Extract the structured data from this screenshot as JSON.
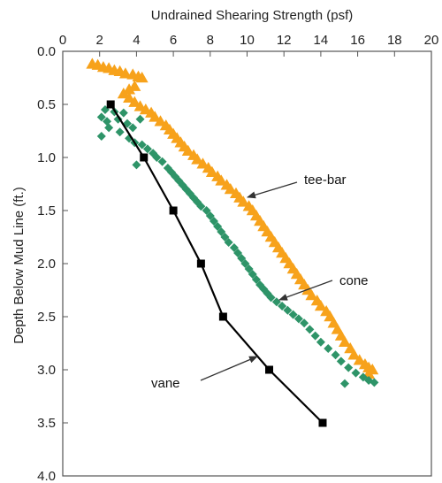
{
  "chart_data": {
    "type": "scatter",
    "title": "",
    "xlabel": "Undrained Shearing Strength (psf)",
    "ylabel": "Depth Below Mud Line (ft.)",
    "x_axis_position": "top",
    "y_axis_inverted": true,
    "xlim": [
      0,
      20
    ],
    "ylim": [
      0.0,
      4.0
    ],
    "x_ticks": [
      "0",
      "2",
      "4",
      "6",
      "8",
      "10",
      "12",
      "14",
      "16",
      "18",
      "20"
    ],
    "y_ticks": [
      "0.0",
      "0.5",
      "1.0",
      "1.5",
      "2.0",
      "2.5",
      "3.0",
      "3.5",
      "4.0"
    ],
    "grid": false,
    "series": [
      {
        "name": "tee-bar",
        "marker": "triangle",
        "color": "#F7A21B",
        "connected": false,
        "points": [
          [
            1.6,
            0.12
          ],
          [
            1.9,
            0.13
          ],
          [
            2.2,
            0.15
          ],
          [
            2.5,
            0.16
          ],
          [
            2.8,
            0.18
          ],
          [
            3.1,
            0.19
          ],
          [
            3.4,
            0.21
          ],
          [
            3.8,
            0.22
          ],
          [
            4.1,
            0.24
          ],
          [
            4.3,
            0.25
          ],
          [
            3.9,
            0.33
          ],
          [
            3.6,
            0.36
          ],
          [
            3.3,
            0.4
          ],
          [
            3.6,
            0.44
          ],
          [
            3.9,
            0.48
          ],
          [
            4.2,
            0.52
          ],
          [
            4.5,
            0.55
          ],
          [
            4.8,
            0.58
          ],
          [
            5.0,
            0.62
          ],
          [
            5.3,
            0.66
          ],
          [
            5.6,
            0.7
          ],
          [
            5.8,
            0.74
          ],
          [
            6.0,
            0.78
          ],
          [
            6.2,
            0.82
          ],
          [
            6.4,
            0.86
          ],
          [
            6.6,
            0.9
          ],
          [
            6.8,
            0.94
          ],
          [
            7.1,
            0.98
          ],
          [
            7.3,
            1.02
          ],
          [
            7.6,
            1.06
          ],
          [
            7.9,
            1.1
          ],
          [
            8.1,
            1.14
          ],
          [
            8.4,
            1.18
          ],
          [
            8.6,
            1.22
          ],
          [
            8.9,
            1.26
          ],
          [
            9.1,
            1.3
          ],
          [
            9.4,
            1.34
          ],
          [
            9.6,
            1.38
          ],
          [
            9.8,
            1.42
          ],
          [
            10.1,
            1.46
          ],
          [
            10.3,
            1.5
          ],
          [
            10.5,
            1.55
          ],
          [
            10.7,
            1.6
          ],
          [
            10.9,
            1.65
          ],
          [
            11.1,
            1.7
          ],
          [
            11.3,
            1.75
          ],
          [
            11.5,
            1.8
          ],
          [
            11.7,
            1.85
          ],
          [
            11.9,
            1.9
          ],
          [
            12.1,
            1.95
          ],
          [
            12.3,
            2.0
          ],
          [
            12.5,
            2.05
          ],
          [
            12.7,
            2.1
          ],
          [
            12.9,
            2.15
          ],
          [
            13.1,
            2.2
          ],
          [
            13.3,
            2.25
          ],
          [
            13.5,
            2.3
          ],
          [
            13.8,
            2.35
          ],
          [
            14.0,
            2.4
          ],
          [
            14.3,
            2.45
          ],
          [
            14.5,
            2.5
          ],
          [
            14.7,
            2.56
          ],
          [
            14.9,
            2.62
          ],
          [
            15.1,
            2.68
          ],
          [
            15.3,
            2.74
          ],
          [
            15.6,
            2.8
          ],
          [
            15.8,
            2.86
          ],
          [
            16.1,
            2.91
          ],
          [
            16.4,
            2.95
          ],
          [
            16.6,
            2.98
          ],
          [
            16.8,
            3.0
          ],
          [
            16.6,
            3.04
          ]
        ]
      },
      {
        "name": "cone",
        "marker": "diamond",
        "color": "#2E9468",
        "connected": false,
        "points": [
          [
            2.3,
            0.55
          ],
          [
            2.8,
            0.57
          ],
          [
            3.3,
            0.58
          ],
          [
            2.1,
            0.62
          ],
          [
            2.4,
            0.66
          ],
          [
            3.0,
            0.64
          ],
          [
            3.5,
            0.68
          ],
          [
            3.8,
            0.72
          ],
          [
            2.5,
            0.72
          ],
          [
            4.2,
            0.64
          ],
          [
            3.6,
            0.82
          ],
          [
            3.9,
            0.86
          ],
          [
            4.3,
            0.88
          ],
          [
            4.6,
            0.92
          ],
          [
            4.9,
            0.96
          ],
          [
            5.1,
            1.0
          ],
          [
            5.4,
            1.04
          ],
          [
            2.1,
            0.8
          ],
          [
            4.0,
            1.07
          ],
          [
            3.1,
            0.76
          ],
          [
            5.7,
            1.1
          ],
          [
            5.9,
            1.14
          ],
          [
            6.1,
            1.18
          ],
          [
            6.3,
            1.22
          ],
          [
            6.5,
            1.26
          ],
          [
            6.7,
            1.3
          ],
          [
            6.9,
            1.34
          ],
          [
            7.1,
            1.38
          ],
          [
            7.3,
            1.42
          ],
          [
            7.5,
            1.46
          ],
          [
            7.8,
            1.5
          ],
          [
            8.0,
            1.55
          ],
          [
            8.2,
            1.6
          ],
          [
            8.4,
            1.65
          ],
          [
            8.6,
            1.7
          ],
          [
            8.8,
            1.75
          ],
          [
            9.0,
            1.8
          ],
          [
            9.3,
            1.85
          ],
          [
            9.5,
            1.9
          ],
          [
            9.7,
            1.95
          ],
          [
            9.9,
            2.0
          ],
          [
            10.1,
            2.05
          ],
          [
            10.3,
            2.1
          ],
          [
            10.5,
            2.15
          ],
          [
            10.7,
            2.2
          ],
          [
            10.9,
            2.24
          ],
          [
            11.1,
            2.28
          ],
          [
            11.3,
            2.32
          ],
          [
            11.6,
            2.36
          ],
          [
            11.9,
            2.4
          ],
          [
            12.2,
            2.44
          ],
          [
            12.5,
            2.48
          ],
          [
            12.8,
            2.52
          ],
          [
            13.1,
            2.56
          ],
          [
            13.4,
            2.62
          ],
          [
            13.7,
            2.68
          ],
          [
            14.0,
            2.74
          ],
          [
            14.4,
            2.8
          ],
          [
            14.8,
            2.86
          ],
          [
            15.1,
            2.92
          ],
          [
            15.5,
            2.98
          ],
          [
            15.9,
            3.03
          ],
          [
            16.3,
            3.07
          ],
          [
            16.6,
            3.1
          ],
          [
            16.9,
            3.12
          ],
          [
            15.3,
            3.13
          ]
        ]
      },
      {
        "name": "vane",
        "marker": "square",
        "color": "#000000",
        "connected": true,
        "points": [
          [
            2.6,
            0.5
          ],
          [
            4.4,
            1.0
          ],
          [
            6.0,
            1.5
          ],
          [
            7.5,
            2.0
          ],
          [
            8.7,
            2.5
          ],
          [
            11.2,
            3.0
          ],
          [
            14.1,
            3.5
          ]
        ]
      }
    ],
    "annotations": [
      {
        "text": "tee-bar",
        "series": "tee-bar"
      },
      {
        "text": "cone",
        "series": "cone"
      },
      {
        "text": "vane",
        "series": "vane"
      }
    ]
  }
}
